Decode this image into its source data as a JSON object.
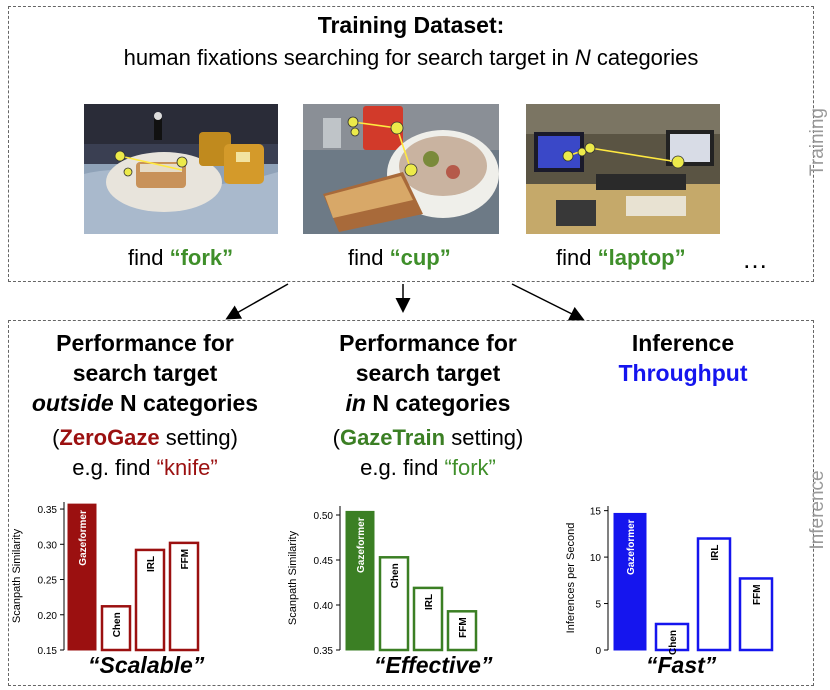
{
  "training": {
    "title": "Training Dataset:",
    "subtitle_pre": "human fixations searching for search target in ",
    "subtitle_n": "N",
    "subtitle_post": " categories",
    "side_label": "Training",
    "find_word": "find",
    "targets": [
      "“fork”",
      "“cup”",
      "“laptop”"
    ],
    "ellipsis": "…"
  },
  "inference": {
    "side_label": "Inference",
    "columns": [
      {
        "line1": "Performance for",
        "line2": "search target",
        "line3_italic": "outside",
        "line3_rest": " N categories",
        "paren_open": "(",
        "setting_name": "ZeroGaze",
        "paren_close": " setting)",
        "eg": "e.g. find ",
        "eg_target": "“knife”",
        "caption": "“Scalable”"
      },
      {
        "line1": "Performance for",
        "line2": "search target",
        "line3_italic": "in",
        "line3_rest": " N categories",
        "paren_open": "(",
        "setting_name": "GazeTrain",
        "paren_close": " setting)",
        "eg": "e.g. find ",
        "eg_target": "“fork”",
        "caption": "“Effective”"
      },
      {
        "line1": "Inference",
        "line2": "Throughput",
        "caption": "“Fast”"
      }
    ]
  },
  "colors": {
    "zerogaze": "#9b1010",
    "gazetrain": "#3b7f24",
    "throughput": "#1515ee",
    "green_text": "#3f8f2a"
  },
  "chart_data": [
    {
      "type": "bar",
      "ylabel": "Scanpath Similarity",
      "categories": [
        "Gazeformer",
        "Chen",
        "IRL",
        "FFM"
      ],
      "values": [
        0.357,
        0.212,
        0.292,
        0.302
      ],
      "ylim": [
        0.15,
        0.36
      ],
      "yticks": [
        "0.15",
        "0.20",
        "0.25",
        "0.30",
        "0.35"
      ],
      "tick_values": [
        0.15,
        0.2,
        0.25,
        0.3,
        0.35
      ],
      "color": "#9b1010",
      "filled": [
        true,
        false,
        false,
        false
      ]
    },
    {
      "type": "bar",
      "ylabel": "Scanpath Similarity",
      "categories": [
        "Gazeformer",
        "Chen",
        "IRL",
        "FFM"
      ],
      "values": [
        0.504,
        0.453,
        0.419,
        0.393
      ],
      "ylim": [
        0.35,
        0.51
      ],
      "yticks": [
        "0.35",
        "0.40",
        "0.45",
        "0.50"
      ],
      "tick_values": [
        0.35,
        0.4,
        0.45,
        0.5
      ],
      "color": "#3b7f24",
      "filled": [
        true,
        false,
        false,
        false
      ]
    },
    {
      "type": "bar",
      "ylabel": "Inferences per Second",
      "categories": [
        "Gazeformer",
        "Chen",
        "IRL",
        "FFM"
      ],
      "values": [
        14.7,
        2.8,
        12.0,
        7.7
      ],
      "ylim": [
        0,
        15.5
      ],
      "yticks": [
        "0",
        "5",
        "10",
        "15"
      ],
      "tick_values": [
        0,
        5,
        10,
        15
      ],
      "color": "#1515ee",
      "filled": [
        true,
        false,
        false,
        false
      ]
    }
  ]
}
